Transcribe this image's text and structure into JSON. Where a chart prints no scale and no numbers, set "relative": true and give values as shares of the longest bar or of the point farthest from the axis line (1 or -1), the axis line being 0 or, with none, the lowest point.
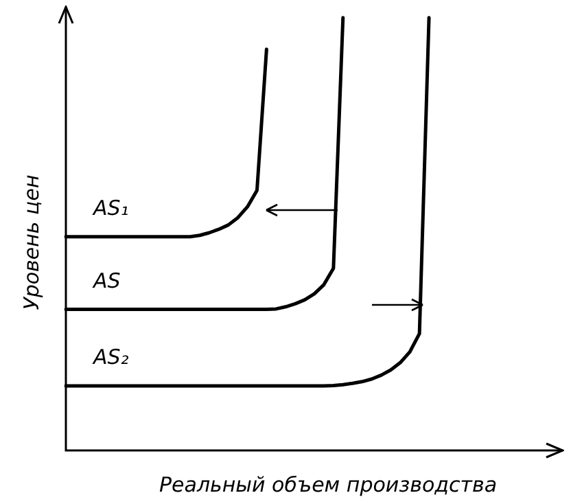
{
  "chart_data": {
    "type": "line",
    "relative": true,
    "xlabel": "Реальный объем производства",
    "ylabel": "Уровень цен",
    "tick_labels": false,
    "grid": false,
    "legend": false,
    "marker": "none",
    "line_style": "solid",
    "categories": [
      null,
      null,
      null,
      null,
      null,
      null,
      null,
      null,
      null,
      null,
      null,
      null,
      null,
      null,
      null,
      null,
      null,
      null,
      null,
      null,
      null,
      null,
      null,
      null,
      null,
      null,
      null,
      null,
      null,
      null,
      null,
      null,
      null,
      null,
      null,
      null,
      null,
      null,
      null,
      null,
      null,
      null,
      null,
      null,
      null,
      null,
      null,
      null,
      null,
      null,
      null,
      null,
      null
    ],
    "series": [
      {
        "name": "AS₁",
        "color": "#000000",
        "values": [
          0.494,
          0.494,
          0.494,
          0.494,
          0.494,
          0.494,
          0.494,
          0.494,
          0.494,
          0.494,
          0.494,
          0.494,
          0.494,
          0.494,
          0.497,
          0.503,
          0.511,
          0.521,
          0.538,
          0.563,
          0.601,
          0.927,
          null,
          null,
          null,
          null,
          null,
          null,
          null,
          null,
          null,
          null,
          null,
          null,
          null,
          null,
          null,
          null,
          null,
          null,
          null,
          null,
          null,
          null,
          null,
          null,
          null,
          null,
          null,
          null,
          null,
          null,
          null
        ]
      },
      {
        "name": "AS",
        "color": "#000000",
        "values": [
          0.326,
          0.326,
          0.326,
          0.326,
          0.326,
          0.326,
          0.326,
          0.326,
          0.326,
          0.326,
          0.326,
          0.326,
          0.326,
          0.326,
          0.326,
          0.326,
          0.326,
          0.326,
          0.326,
          0.326,
          0.326,
          0.326,
          0.327,
          0.332,
          0.339,
          0.348,
          0.362,
          0.383,
          0.421,
          1,
          null,
          null,
          null,
          null,
          null,
          null,
          null,
          null,
          null,
          null,
          null,
          null,
          null,
          null,
          null,
          null,
          null,
          null,
          null,
          null,
          null,
          null,
          null
        ]
      },
      {
        "name": "AS₂",
        "color": "#000000",
        "values": [
          0.149,
          0.149,
          0.149,
          0.149,
          0.149,
          0.149,
          0.149,
          0.149,
          0.149,
          0.149,
          0.149,
          0.149,
          0.149,
          0.149,
          0.149,
          0.149,
          0.149,
          0.149,
          0.149,
          0.149,
          0.149,
          0.149,
          0.149,
          0.149,
          0.149,
          0.149,
          0.149,
          0.149,
          0.15,
          0.152,
          0.155,
          0.159,
          0.165,
          0.174,
          0.186,
          0.203,
          0.228,
          0.27,
          1,
          null,
          null,
          null,
          null,
          null,
          null,
          null,
          null,
          null,
          null,
          null,
          null,
          null,
          null
        ]
      }
    ]
  }
}
